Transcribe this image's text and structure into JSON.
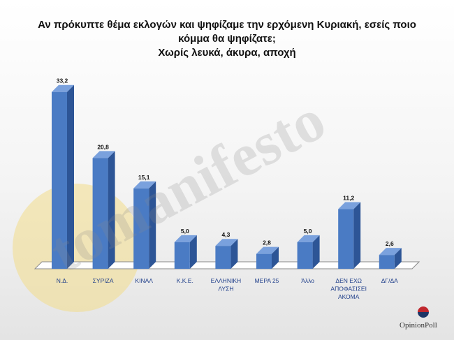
{
  "title_lines": [
    "Αν πρόκυπτε θέμα εκλογών και ψηφίζαμε την ερχόμενη Κυριακή, εσείς ποιο",
    "κόμμα θα ψηφίζατε;",
    "Χωρίς λευκά, άκυρα, αποχή"
  ],
  "watermark": "tomanifesto",
  "logo_text": "OpinionPoll",
  "colors": {
    "bar_front": "#4a7bc4",
    "bar_side": "#2d5596",
    "bar_top": "#7aa1dd",
    "category_label": "#1f3e8a"
  },
  "chart_data": {
    "type": "bar",
    "categories": [
      [
        "Ν.Δ."
      ],
      [
        "ΣΥΡΙΖΑ"
      ],
      [
        "ΚΙΝΑΛ"
      ],
      [
        "Κ.Κ.Ε."
      ],
      [
        "ΕΛΛΗΝΙΚΗ",
        "ΛΥΣΗ"
      ],
      [
        "ΜΕΡΑ 25"
      ],
      [
        "Άλλο"
      ],
      [
        "ΔΕΝ ΕΧΩ",
        "ΑΠΟΦΑΣΙΣΕΙ",
        "ΑΚΟΜΑ"
      ],
      [
        "ΔΓ/ΔΑ"
      ]
    ],
    "values": [
      33.2,
      20.8,
      15.1,
      5.0,
      4.3,
      2.8,
      5.0,
      11.2,
      2.6
    ],
    "value_labels": [
      "33,2",
      "20,8",
      "15,1",
      "5,0",
      "4,3",
      "2,8",
      "5,0",
      "11,2",
      "2,6"
    ],
    "ylim": [
      0,
      35
    ],
    "grid": false,
    "legend": false
  }
}
